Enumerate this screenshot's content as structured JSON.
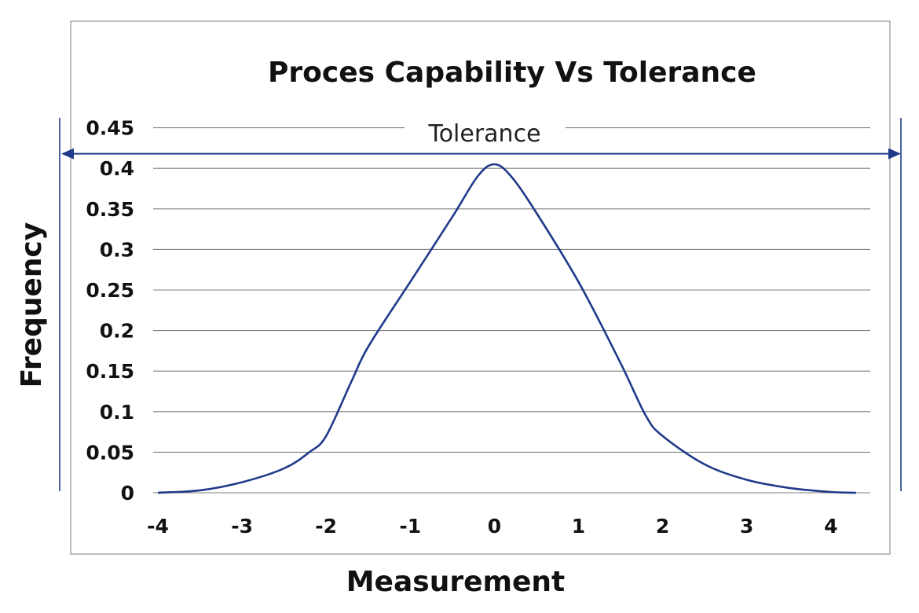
{
  "chart_data": {
    "type": "line",
    "title": "Proces Capability Vs Tolerance",
    "xlabel": "Measurement",
    "ylabel": "Frequency",
    "xlim": [
      -4,
      4.3
    ],
    "ylim": [
      0,
      0.45
    ],
    "x_ticks": [
      "-4",
      "-3",
      "-2",
      "-1",
      "0",
      "1",
      "2",
      "3",
      "4"
    ],
    "y_ticks": [
      "0",
      "0.05",
      "0.1",
      "0.15",
      "0.2",
      "0.25",
      "0.3",
      "0.35",
      "0.4",
      "0.45"
    ],
    "grid": true,
    "color": "#1f3a8a",
    "series": [
      {
        "x": [
          -4,
          -3.5,
          -3,
          -2.5,
          -2.2,
          -2,
          -1.7,
          -1.5,
          -1,
          -0.5,
          -0.2,
          0,
          0.2,
          0.5,
          1,
          1.5,
          1.8,
          2,
          2.5,
          3,
          3.5,
          4,
          4.3
        ],
        "y": [
          0,
          0.003,
          0.013,
          0.03,
          0.05,
          0.07,
          0.137,
          0.18,
          0.26,
          0.34,
          0.39,
          0.405,
          0.39,
          0.345,
          0.26,
          0.16,
          0.095,
          0.07,
          0.035,
          0.016,
          0.006,
          0.001,
          0
        ]
      }
    ],
    "annotations": [
      {
        "text": "Tolerance",
        "type": "double-arrow",
        "y": 0.418
      }
    ]
  }
}
